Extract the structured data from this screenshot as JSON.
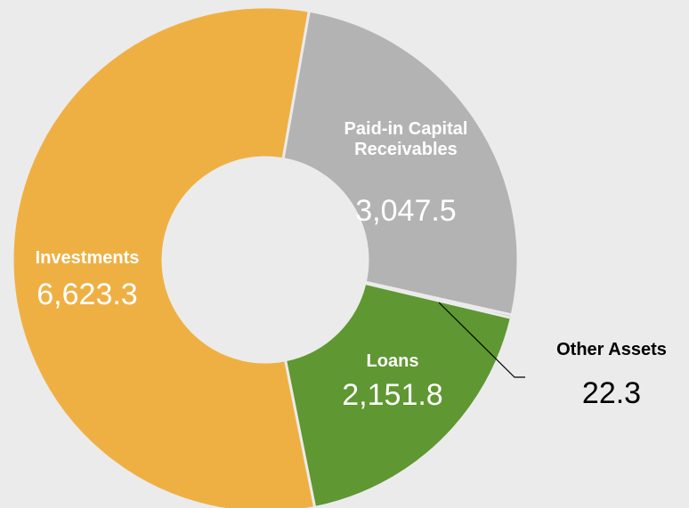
{
  "chart_data": {
    "type": "pie",
    "donut": true,
    "categories": [
      "Paid-in Capital Receivables",
      "Other Assets",
      "Loans",
      "Investments"
    ],
    "values": [
      3047.5,
      22.3,
      2151.8,
      6623.3
    ],
    "value_labels": [
      "3,047.5",
      "22.3",
      "2,151.8",
      "6,623.3"
    ],
    "colors": [
      "#b3b3b3",
      "#7f7f7f",
      "#5f9732",
      "#efb043"
    ]
  }
}
